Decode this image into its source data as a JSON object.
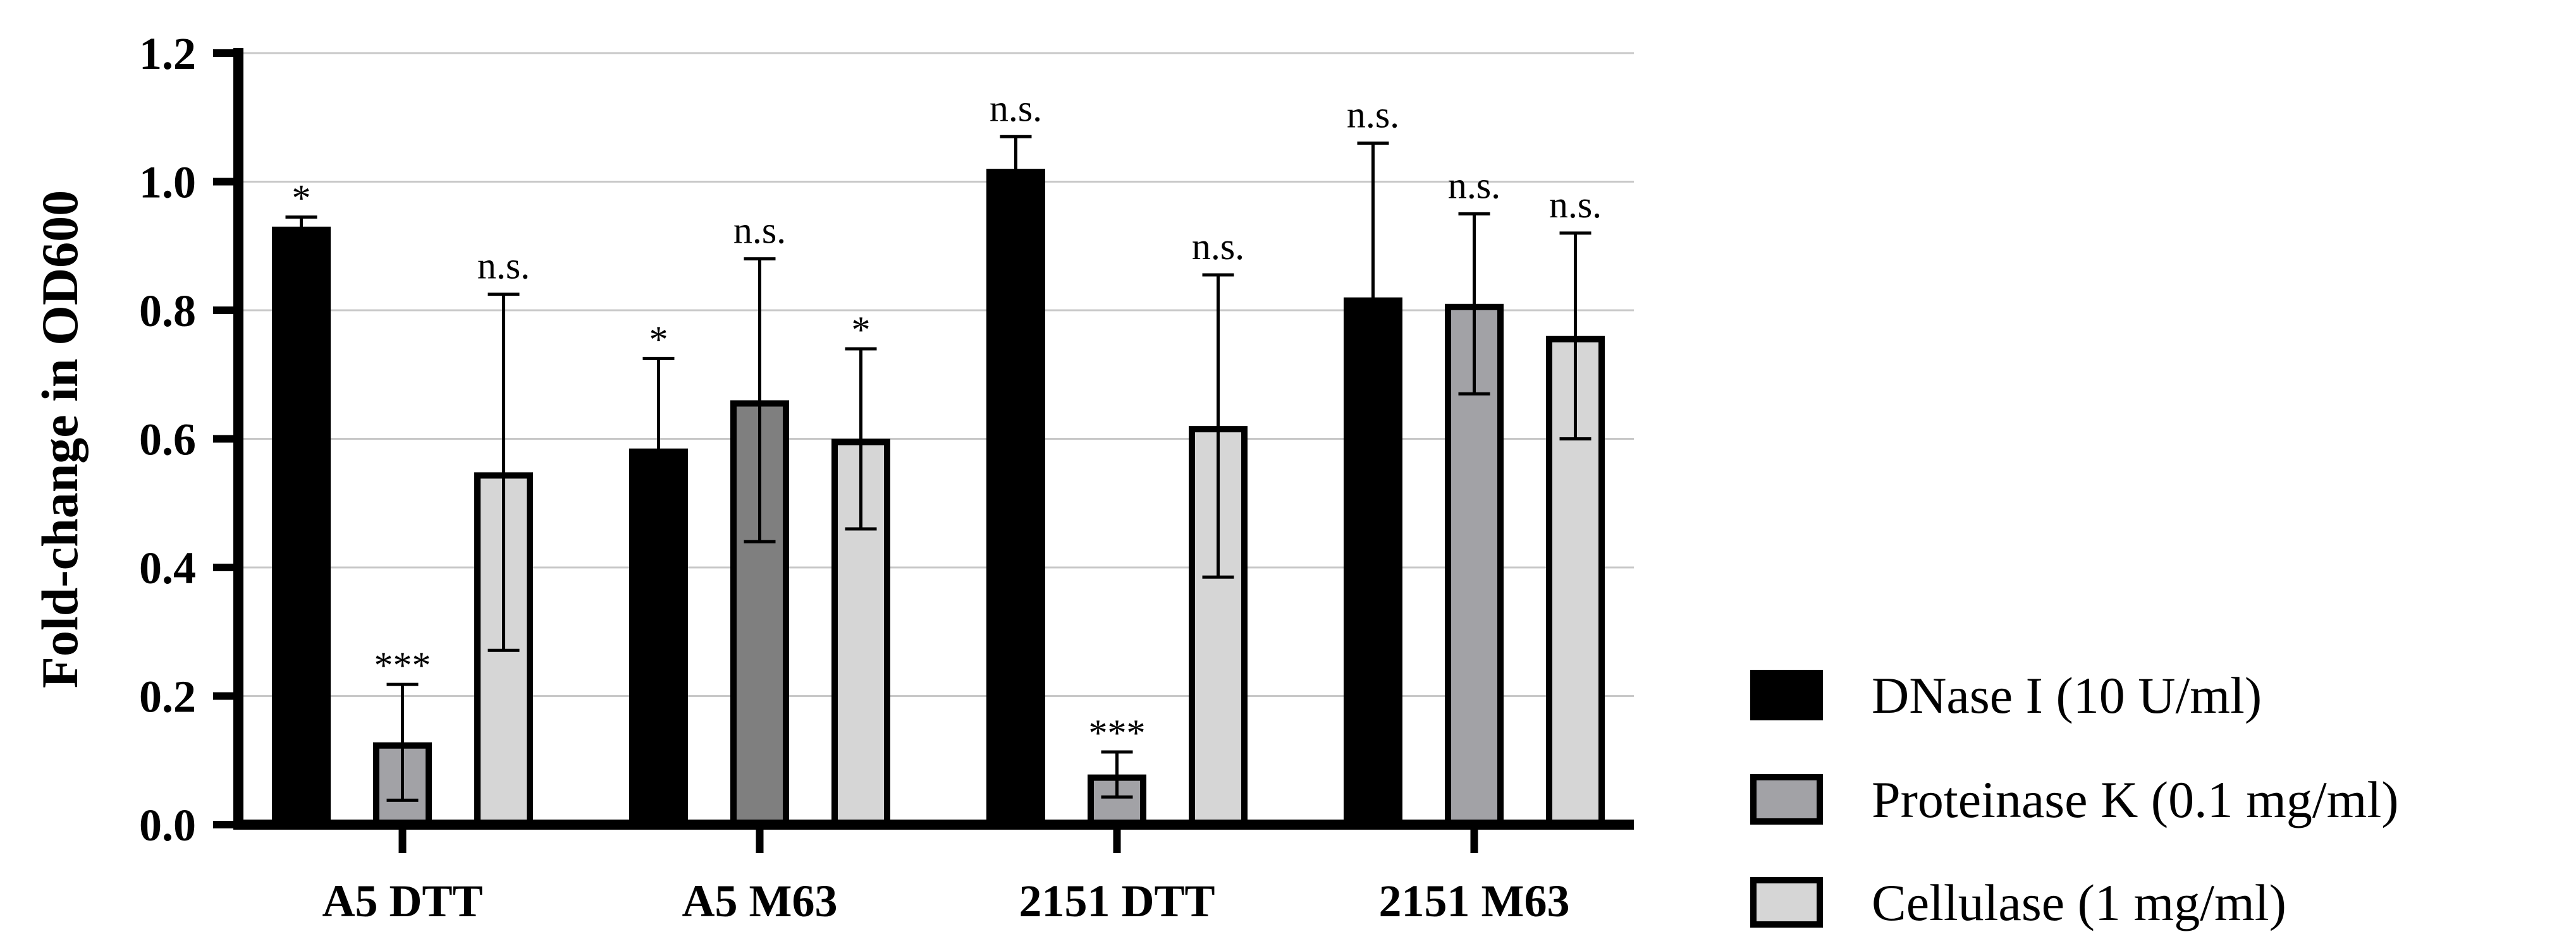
{
  "chart_data": {
    "type": "bar",
    "title": "",
    "xlabel": "",
    "ylabel": "Fold-change in OD600",
    "ylim": [
      0,
      1.2
    ],
    "yticks": [
      "0.0",
      "0.2",
      "0.4",
      "0.6",
      "0.8",
      "1.0",
      "1.2"
    ],
    "grid": "horizontal",
    "legend_position": "bottom-right",
    "categories": [
      "A5 DTT",
      "A5 M63",
      "2151 DTT",
      "2151 M63"
    ],
    "series": [
      {
        "name": "DNase I (10 U/ml)",
        "color": "#000000",
        "values": [
          0.93,
          0.585,
          1.02,
          0.82
        ],
        "errors": [
          0.015,
          0.14,
          0.05,
          0.24
        ],
        "significance": [
          "*",
          "*",
          "n.s.",
          "n.s."
        ]
      },
      {
        "name": "Proteinase K (0.1 mg/ml)",
        "color": "#a2a2a6",
        "values": [
          0.128,
          0.66,
          0.078,
          0.81
        ],
        "errors": [
          0.09,
          0.22,
          0.035,
          0.14
        ],
        "significance": [
          "***",
          "n.s.",
          "***",
          "n.s."
        ]
      },
      {
        "name": "Cellulase (1 mg/ml)",
        "color": "#d6d6d6",
        "values": [
          0.548,
          0.6,
          0.62,
          0.76
        ],
        "errors": [
          0.277,
          0.14,
          0.235,
          0.16
        ],
        "significance": [
          "n.s.",
          "*",
          "n.s.",
          "n.s."
        ]
      }
    ],
    "bar_color_overrides": [
      {
        "category_index": 1,
        "series_index": 1,
        "color": "#7f7f7f"
      }
    ]
  }
}
